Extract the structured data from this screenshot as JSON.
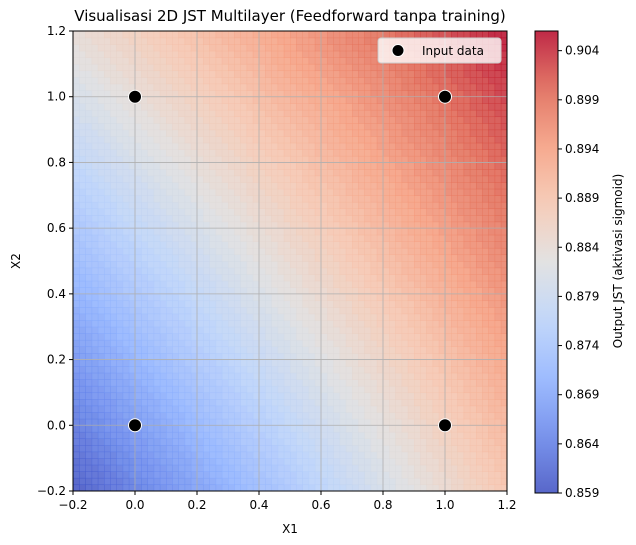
{
  "chart_data": {
    "type": "heatmap",
    "title": "Visualisasi 2D JST Multilayer (Feedforward tanpa training)",
    "xlabel": "X1",
    "ylabel": "X2",
    "xlim": [
      -0.2,
      1.2
    ],
    "ylim": [
      -0.2,
      1.2
    ],
    "x_ticks": [
      -0.2,
      0.0,
      0.2,
      0.4,
      0.6,
      0.8,
      1.0,
      1.2
    ],
    "y_ticks": [
      -0.2,
      0.0,
      0.2,
      0.4,
      0.6,
      0.8,
      1.0,
      1.2
    ],
    "x_tick_labels": [
      "−0.2",
      "0.0",
      "0.2",
      "0.4",
      "0.6",
      "0.8",
      "1.0",
      "1.2"
    ],
    "y_tick_labels": [
      "−0.2",
      "0.0",
      "0.2",
      "0.4",
      "0.6",
      "0.8",
      "1.0",
      "1.2"
    ],
    "grid": true,
    "colormap": "coolwarm",
    "surface": {
      "z_at_corners": {
        "x-0.2_y-0.2": 0.859,
        "x1.2_y-0.2": 0.889,
        "x-0.2_y1.2": 0.884,
        "x1.2_y1.2": 0.906
      },
      "contour_levels": 50
    },
    "colorbar": {
      "label": "Output JST (aktivasi sigmoid)",
      "min": 0.859,
      "max": 0.906,
      "ticks": [
        0.859,
        0.864,
        0.869,
        0.874,
        0.879,
        0.884,
        0.889,
        0.894,
        0.899,
        0.904
      ],
      "tick_labels": [
        "0.859",
        "0.864",
        "0.869",
        "0.874",
        "0.879",
        "0.884",
        "0.889",
        "0.894",
        "0.899",
        "0.904"
      ]
    },
    "series": [
      {
        "name": "Input data",
        "type": "scatter",
        "points": [
          [
            0,
            0
          ],
          [
            0,
            1
          ],
          [
            1,
            0
          ],
          [
            1,
            1
          ]
        ],
        "color": "#000000",
        "edgecolor": "#ffffff"
      }
    ],
    "legend": {
      "placement": "top-right",
      "label": "Input data"
    }
  }
}
